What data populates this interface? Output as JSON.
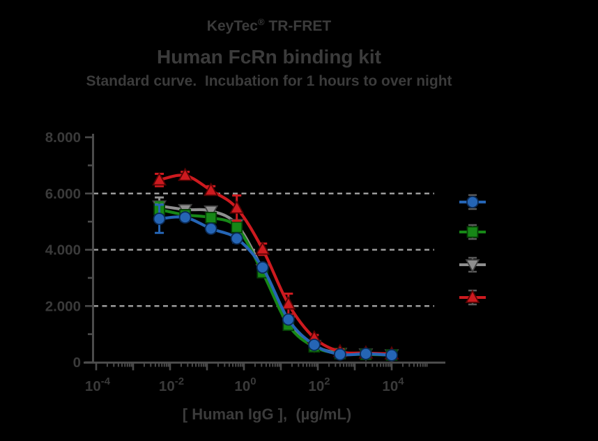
{
  "title": {
    "line1_pre": "KeyTec",
    "line1_sup": "®",
    "line1_post": " TR-FRET",
    "line2": "Human FcRn binding kit",
    "line3": "Standard curve.  Incubation for 1 hours to over night"
  },
  "chart_data": {
    "type": "line",
    "title": "KeyTec® TR-FRET Human FcRn binding kit",
    "subtitle": "Standard curve.  Incubation for 1 hours to over night",
    "x_axis": {
      "label": "[ Human IgG ],  (µg/mL)",
      "scale": "log10",
      "range_exponents": [
        -4,
        4
      ],
      "labeled_exponents": [
        -4,
        -2,
        0,
        2,
        4
      ],
      "tick_label_base": "10"
    },
    "y_axis": {
      "range": [
        0,
        8000
      ],
      "major_step": 2000,
      "minor_step": 1000,
      "tick_labels": [
        "0",
        "2.000",
        "4.000",
        "6.000",
        "8.000"
      ],
      "gridlines_at": [
        2000,
        4000,
        6000
      ],
      "grid_color": "#9c9c9c"
    },
    "x_values_ug_ml": [
      0.00512,
      0.0256,
      0.128,
      0.64,
      3.2,
      16,
      80,
      400,
      2000,
      10000
    ],
    "series": [
      {
        "name": "series-gray-triangle-down",
        "marker": "triangle-down",
        "color": "#8f8f8f",
        "outline": "#3f3f3f",
        "values": [
          5560,
          5430,
          5380,
          4900,
          3300,
          1450,
          600,
          320,
          300,
          270
        ],
        "errors": [
          300,
          150,
          120,
          130,
          120,
          100,
          80,
          60,
          60,
          60
        ]
      },
      {
        "name": "series-green-square",
        "marker": "square",
        "color": "#178717",
        "outline": "#053f05",
        "values": [
          5430,
          5240,
          5140,
          4800,
          3190,
          1320,
          550,
          310,
          280,
          260
        ],
        "errors": [
          260,
          150,
          130,
          120,
          120,
          100,
          80,
          60,
          60,
          60
        ]
      },
      {
        "name": "series-red-triangle-up",
        "marker": "triangle-up",
        "color": "#cd1a1f",
        "outline": "#570404",
        "values": [
          6480,
          6640,
          6110,
          5480,
          4020,
          2070,
          870,
          380,
          330,
          300
        ],
        "errors": [
          220,
          130,
          150,
          450,
          200,
          370,
          100,
          80,
          60,
          60
        ]
      },
      {
        "name": "series-blue-circle",
        "marker": "circle",
        "color": "#2565b5",
        "outline": "#0a2a55",
        "values": [
          5100,
          5150,
          4750,
          4400,
          3370,
          1520,
          620,
          280,
          300,
          250
        ],
        "errors": [
          500,
          130,
          110,
          140,
          120,
          100,
          80,
          60,
          60,
          60
        ]
      }
    ],
    "legend": {
      "position": "right",
      "entries": [
        {
          "series_index": 3,
          "label": ""
        },
        {
          "series_index": 1,
          "label": ""
        },
        {
          "series_index": 0,
          "label": ""
        },
        {
          "series_index": 2,
          "label": ""
        }
      ]
    },
    "axis_color": "#4b4b4b",
    "label_color": "#3a3a3a"
  }
}
